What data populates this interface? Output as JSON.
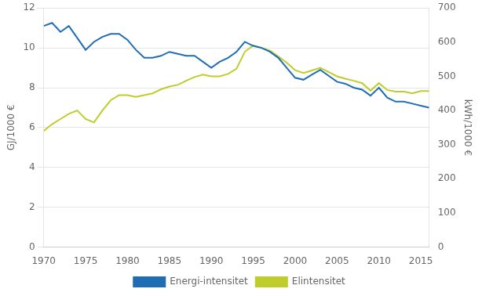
{
  "chart_data": {
    "type": "line",
    "x": [
      1970,
      1971,
      1972,
      1973,
      1974,
      1975,
      1976,
      1977,
      1978,
      1979,
      1980,
      1981,
      1982,
      1983,
      1984,
      1985,
      1986,
      1987,
      1988,
      1989,
      1990,
      1991,
      1992,
      1993,
      1994,
      1995,
      1996,
      1997,
      1998,
      1999,
      2000,
      2001,
      2002,
      2003,
      2004,
      2005,
      2006,
      2007,
      2008,
      2009,
      2010,
      2011,
      2012,
      2013,
      2014,
      2015,
      2016
    ],
    "series": [
      {
        "name": "Energi-intensitet",
        "color": "#1F6DB5",
        "values": [
          11.1,
          11.25,
          10.8,
          11.1,
          10.5,
          9.9,
          10.3,
          10.55,
          10.7,
          10.7,
          10.4,
          9.9,
          9.5,
          9.5,
          9.6,
          9.8,
          9.7,
          9.6,
          9.6,
          9.3,
          9.0,
          9.3,
          9.5,
          9.8,
          10.3,
          10.1,
          10.0,
          9.8,
          9.5,
          9.0,
          8.5,
          8.4,
          8.65,
          8.9,
          8.6,
          8.3,
          8.2,
          8.0,
          7.9,
          7.6,
          8.0,
          7.5,
          7.3,
          7.3,
          7.2,
          7.1,
          7.0
        ]
      },
      {
        "name": "Elintensitet",
        "color": "#BFCD2A",
        "axis": "y2",
        "values": [
          340,
          360,
          375,
          390,
          400,
          375,
          365,
          400,
          430,
          445,
          445,
          440,
          445,
          450,
          462,
          470,
          475,
          487,
          498,
          505,
          500,
          500,
          507,
          522,
          572,
          590,
          583,
          575,
          558,
          540,
          518,
          510,
          517,
          525,
          513,
          500,
          493,
          487,
          480,
          458,
          480,
          460,
          455,
          455,
          450,
          457,
          457
        ]
      }
    ],
    "ylabel": "GJ/1000 €",
    "y2label": "kWh/1000 €",
    "xlim": [
      1970,
      2016
    ],
    "xticks": [
      1970,
      1975,
      1980,
      1985,
      1990,
      1995,
      2000,
      2005,
      2010,
      2015
    ],
    "ylim": [
      0,
      12
    ],
    "yticks": [
      0,
      2,
      4,
      6,
      8,
      10,
      12
    ],
    "y2lim": [
      0,
      700
    ],
    "y2ticks": [
      0,
      100,
      200,
      300,
      400,
      500,
      600,
      700
    ],
    "grid": "y",
    "legend": "bottom"
  }
}
